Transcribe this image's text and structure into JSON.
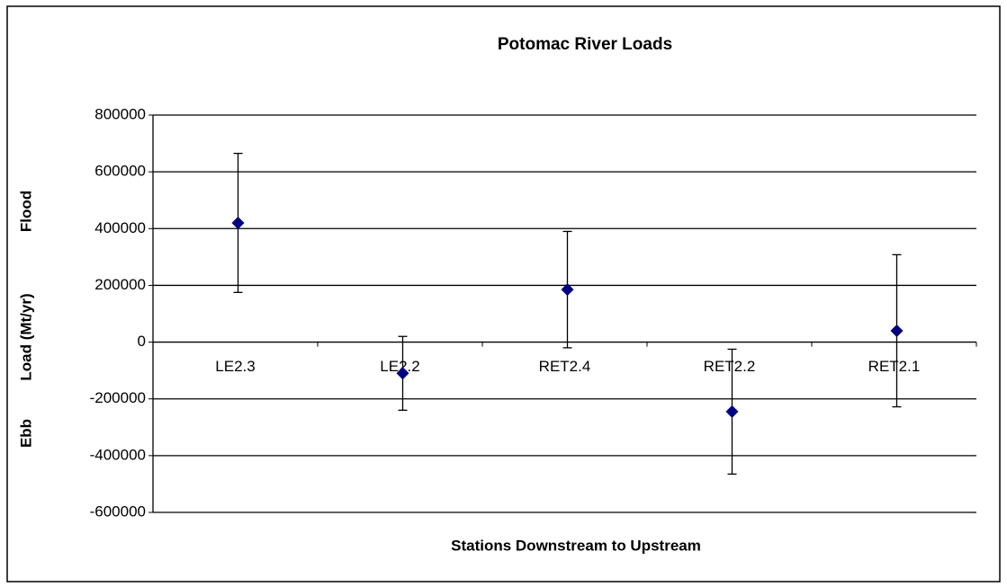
{
  "chart_data": {
    "type": "errorbar",
    "title": "Potomac River Loads",
    "x_label": "Stations Downstream to Upstream",
    "y_label": "Load (Mt/yr)",
    "annotations": [
      "Flood",
      "Ebb"
    ],
    "categories": [
      "LE2.3",
      "LE2.2",
      "RET2.4",
      "RET2.2",
      "RET2.1"
    ],
    "values": [
      420000,
      -110000,
      185000,
      -245000,
      40000
    ],
    "errors": [
      245000,
      130000,
      205000,
      220000,
      268000
    ],
    "color": "#000080",
    "ylim": [
      -600000,
      800000
    ],
    "yticks": [
      -600000,
      -400000,
      -200000,
      0,
      200000,
      400000,
      600000,
      800000
    ],
    "grid": true
  }
}
